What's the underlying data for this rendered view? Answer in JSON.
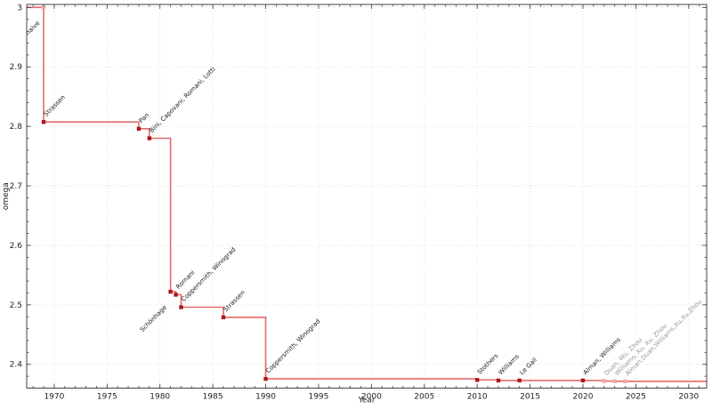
{
  "figure": {
    "background": "#ffffff"
  },
  "chart_data": {
    "type": "line",
    "style": "step-post",
    "title": "",
    "xlabel": "Year",
    "ylabel": "omega",
    "xlim": [
      1967.4,
      2031.7
    ],
    "ylim": [
      2.36,
      3.005
    ],
    "grid": "dotted-major",
    "legend": "none",
    "x_major_ticks": [
      1970,
      1975,
      1980,
      1985,
      1990,
      1995,
      2000,
      2005,
      2010,
      2015,
      2020,
      2025,
      2030
    ],
    "x_minor_step": 1,
    "y_major_ticks": [
      {
        "value": 2.4,
        "label": "2.4"
      },
      {
        "value": 2.5,
        "label": "2.5"
      },
      {
        "value": 2.6,
        "label": "2.6"
      },
      {
        "value": 2.7,
        "label": "2.7"
      },
      {
        "value": 2.8,
        "label": "2.8"
      },
      {
        "value": 2.9,
        "label": "2.9"
      },
      {
        "value": 3.0,
        "label": "3"
      }
    ],
    "y_minor_step": 0.02,
    "colors": {
      "line": "#e05a5a",
      "marker_dark": "#aa1a1a",
      "marker_light": "#f2a6a6",
      "label_dark": "#1a1a1a",
      "label_grey": "#979797",
      "grid": "#d8d8d8",
      "axis": "#444444",
      "tick_text": "#222222"
    },
    "line_start": {
      "year": 1967.4,
      "omega": 3
    },
    "points": [
      {
        "year": 1969,
        "omega": 3,
        "label": "naive",
        "marker": "light",
        "label_color": "dark",
        "label_side": "below"
      },
      {
        "year": 1969,
        "omega": 2.8074,
        "label": "Strassen",
        "marker": "dark",
        "label_color": "dark",
        "label_side": "above"
      },
      {
        "year": 1978,
        "omega": 2.796,
        "label": "Pan",
        "marker": "dark",
        "label_color": "dark",
        "label_side": "above"
      },
      {
        "year": 1979,
        "omega": 2.78,
        "label": "Bini, Capovani, Romani, Lotti",
        "marker": "dark",
        "label_color": "dark",
        "label_side": "above"
      },
      {
        "year": 1981,
        "omega": 2.522,
        "label": "Schönhage",
        "marker": "dark",
        "label_color": "dark",
        "label_side": "below"
      },
      {
        "year": 1981.5,
        "omega": 2.517,
        "label": "Romani",
        "marker": "dark",
        "label_color": "dark",
        "label_side": "above"
      },
      {
        "year": 1982,
        "omega": 2.496,
        "label": "Coppersmith, Winograd",
        "marker": "dark",
        "label_color": "dark",
        "label_side": "above"
      },
      {
        "year": 1986,
        "omega": 2.479,
        "label": "Strassen",
        "marker": "dark",
        "label_color": "dark",
        "label_side": "above"
      },
      {
        "year": 1990,
        "omega": 2.3755,
        "label": "Coppersmith, Winograd",
        "marker": "dark",
        "label_color": "dark",
        "label_side": "above"
      },
      {
        "year": 2010,
        "omega": 2.3737,
        "label": "Stothers",
        "marker": "dark",
        "label_color": "dark",
        "label_side": "above"
      },
      {
        "year": 2012,
        "omega": 2.3729,
        "label": "Williams",
        "marker": "dark",
        "label_color": "dark",
        "label_side": "above"
      },
      {
        "year": 2014,
        "omega": 2.3728639,
        "label": "Le Gall",
        "marker": "dark",
        "label_color": "dark",
        "label_side": "above"
      },
      {
        "year": 2020,
        "omega": 2.3728596,
        "label": "Alman, Williams",
        "marker": "dark",
        "label_color": "dark",
        "label_side": "above"
      },
      {
        "year": 2022,
        "omega": 2.371866,
        "label": "Duan, Wu, Zhou",
        "marker": "light",
        "label_color": "grey",
        "label_side": "above"
      },
      {
        "year": 2023,
        "omega": 2.371552,
        "label": "Williams, Xu, Xu, Zhou",
        "marker": "light",
        "label_color": "grey",
        "label_side": "above"
      },
      {
        "year": 2024,
        "omega": 2.371339,
        "label": "Alman,Duan,Williams,Xu,Xu,Zhou",
        "marker": "light",
        "label_color": "grey",
        "label_side": "above"
      }
    ]
  }
}
